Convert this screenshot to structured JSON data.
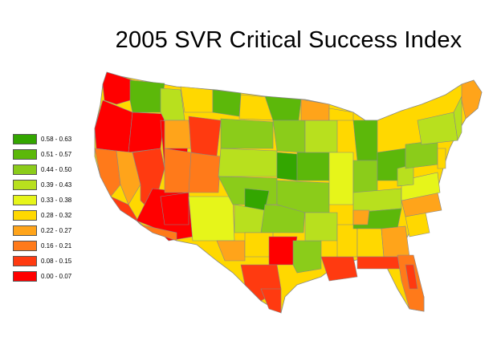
{
  "title": "2005 SVR Critical Success Index",
  "legend": [
    {
      "label": "0.58 - 0.63",
      "color": "#33a600"
    },
    {
      "label": "0.51 - 0.57",
      "color": "#5cb80a"
    },
    {
      "label": "0.44 - 0.50",
      "color": "#8bcc1a"
    },
    {
      "label": "0.39 - 0.43",
      "color": "#b8e01e"
    },
    {
      "label": "0.33 - 0.38",
      "color": "#e6f51a"
    },
    {
      "label": "0.28 - 0.32",
      "color": "#ffd800"
    },
    {
      "label": "0.22 - 0.27",
      "color": "#ffa41a"
    },
    {
      "label": "0.16 - 0.21",
      "color": "#ff7a1a"
    },
    {
      "label": "0.08 - 0.15",
      "color": "#ff3a10"
    },
    {
      "label": "0.00 - 0.07",
      "color": "#ff0000"
    }
  ]
}
